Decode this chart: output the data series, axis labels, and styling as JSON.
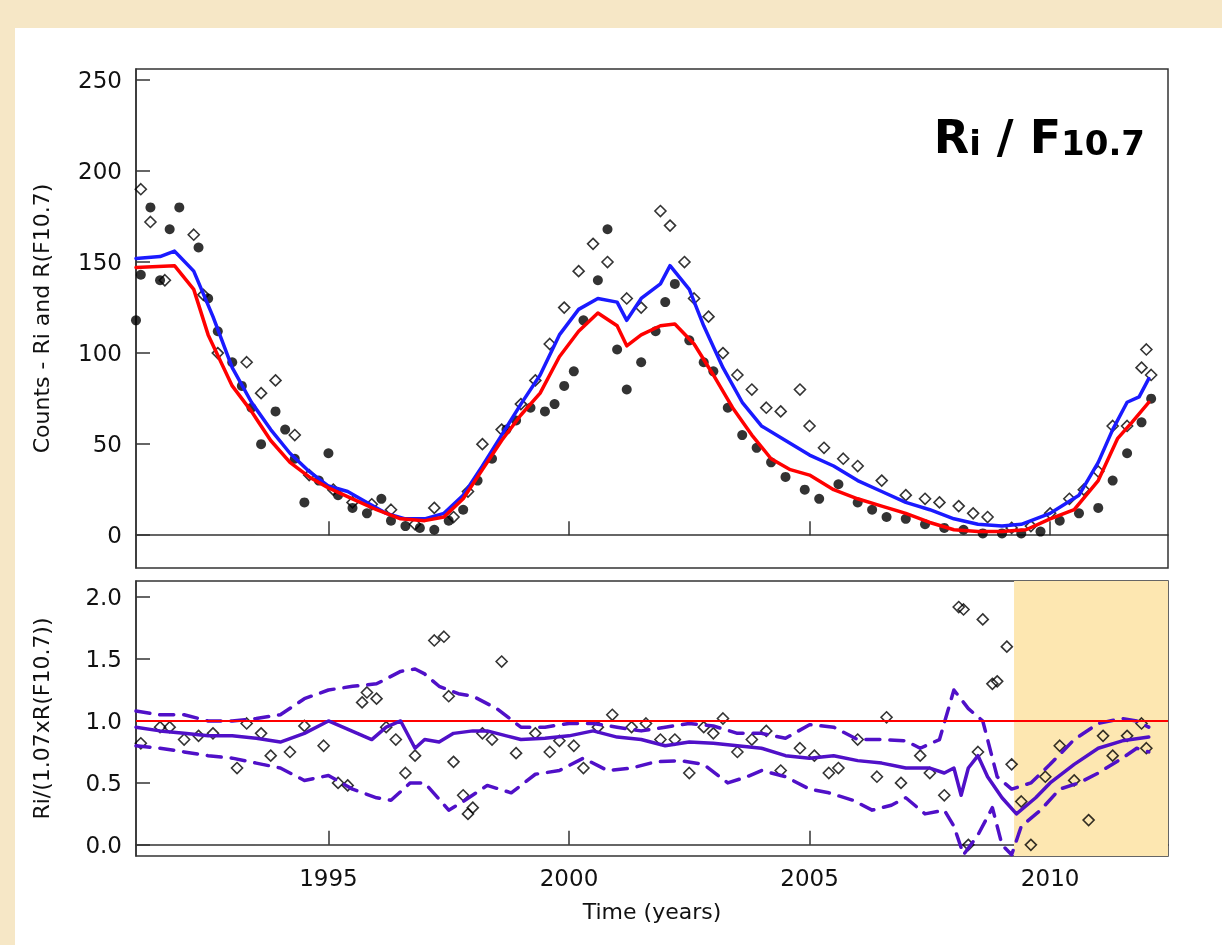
{
  "chart_data": [
    {
      "type": "line",
      "title": "R$_{i}$ / F$_{10.7}$",
      "ylabel": "Counts - Ri and R(F10.7)",
      "xlim": [
        1991,
        2012.45
      ],
      "xticks": [
        1995,
        2000,
        2005,
        2010
      ],
      "ylim": [
        -18,
        256
      ],
      "yticks": [
        0,
        50,
        100,
        150,
        200,
        250
      ],
      "tick_labels": "y",
      "series": [
        {
          "type": "scatter",
          "marker": "circle",
          "color": "#000000",
          "x": [
            1991.0,
            1991.1,
            1991.3,
            1991.5,
            1991.7,
            1991.9,
            1992.3,
            1992.5,
            1992.7,
            1993.0,
            1993.2,
            1993.4,
            1993.6,
            1993.9,
            1994.1,
            1994.3,
            1994.5,
            1994.8,
            1995.0,
            1995.2,
            1995.5,
            1995.8,
            1996.1,
            1996.3,
            1996.6,
            1996.9,
            1997.2,
            1997.5,
            1997.8,
            1998.1,
            1998.4,
            1998.7,
            1998.9,
            1999.2,
            1999.5,
            1999.7,
            1999.9,
            2000.1,
            2000.3,
            2000.6,
            2000.8,
            2001.0,
            2001.2,
            2001.5,
            2001.8,
            2002.0,
            2002.2,
            2002.5,
            2002.8,
            2003.0,
            2003.3,
            2003.6,
            2003.9,
            2004.2,
            2004.5,
            2004.9,
            2005.2,
            2005.6,
            2006.0,
            2006.3,
            2006.6,
            2007.0,
            2007.4,
            2007.8,
            2008.2,
            2008.6,
            2009.0,
            2009.4,
            2009.8,
            2010.2,
            2010.6,
            2011.0,
            2011.3,
            2011.6,
            2011.9,
            2012.1
          ],
          "values": [
            118,
            143,
            180,
            140,
            168,
            180,
            158,
            130,
            112,
            95,
            82,
            70,
            50,
            68,
            58,
            42,
            18,
            30,
            45,
            22,
            15,
            12,
            20,
            8,
            5,
            4,
            3,
            8,
            14,
            30,
            42,
            58,
            63,
            70,
            68,
            72,
            82,
            90,
            118,
            140,
            168,
            102,
            80,
            95,
            112,
            128,
            138,
            107,
            95,
            90,
            70,
            55,
            48,
            40,
            32,
            25,
            20,
            28,
            18,
            14,
            10,
            9,
            6,
            4,
            3,
            1,
            1,
            1,
            2,
            8,
            12,
            15,
            30,
            45,
            62,
            75
          ]
        },
        {
          "type": "scatter",
          "marker": "diamond",
          "color": "#000000",
          "x": [
            1991.1,
            1991.3,
            1991.6,
            1992.2,
            1992.4,
            1992.7,
            1993.3,
            1993.6,
            1993.9,
            1994.3,
            1994.6,
            1995.1,
            1995.5,
            1995.9,
            1996.3,
            1996.8,
            1997.2,
            1997.6,
            1997.9,
            1998.2,
            1998.6,
            1999.0,
            1999.3,
            1999.6,
            1999.9,
            2000.2,
            2000.5,
            2000.8,
            2001.2,
            2001.5,
            2001.9,
            2002.1,
            2002.4,
            2002.6,
            2002.9,
            2003.2,
            2003.5,
            2003.8,
            2004.1,
            2004.4,
            2004.8,
            2005.0,
            2005.3,
            2005.7,
            2006.0,
            2006.5,
            2007.0,
            2007.4,
            2007.7,
            2008.1,
            2008.4,
            2008.7,
            2009.2,
            2009.6,
            2010.0,
            2010.4,
            2010.7,
            2011.0,
            2011.3,
            2011.6,
            2011.9,
            2012.0,
            2012.1
          ],
          "values": [
            190,
            172,
            140,
            165,
            132,
            100,
            95,
            78,
            85,
            55,
            33,
            25,
            18,
            17,
            14,
            6,
            15,
            10,
            24,
            50,
            58,
            72,
            85,
            105,
            125,
            145,
            160,
            150,
            130,
            125,
            178,
            170,
            150,
            130,
            120,
            100,
            88,
            80,
            70,
            68,
            80,
            60,
            48,
            42,
            38,
            30,
            22,
            20,
            18,
            16,
            12,
            10,
            4,
            5,
            12,
            20,
            25,
            35,
            60,
            60,
            92,
            102,
            88
          ]
        },
        {
          "type": "line",
          "marker": "none",
          "color": "#1a1aff",
          "x": [
            1991.0,
            1991.5,
            1991.8,
            1992.2,
            1992.6,
            1993.0,
            1993.4,
            1993.8,
            1994.2,
            1994.6,
            1995.0,
            1995.4,
            1995.8,
            1996.2,
            1996.6,
            1997.0,
            1997.4,
            1997.8,
            1998.2,
            1998.6,
            1999.0,
            1999.4,
            1999.8,
            2000.2,
            2000.6,
            2001.0,
            2001.2,
            2001.5,
            2001.9,
            2002.1,
            2002.5,
            2002.8,
            2003.2,
            2003.6,
            2004.0,
            2004.5,
            2005.0,
            2005.5,
            2006.0,
            2006.5,
            2007.0,
            2007.5,
            2008.0,
            2008.5,
            2009.0,
            2009.4,
            2010.0,
            2010.6,
            2011.0,
            2011.3,
            2011.6,
            2011.85,
            2012.05
          ],
          "values": [
            152,
            153,
            156,
            145,
            120,
            92,
            73,
            58,
            45,
            35,
            27,
            24,
            18,
            12,
            9,
            9,
            12,
            22,
            38,
            55,
            72,
            88,
            110,
            124,
            130,
            128,
            118,
            130,
            138,
            148,
            135,
            115,
            92,
            73,
            60,
            52,
            44,
            38,
            30,
            24,
            18,
            14,
            9,
            6,
            5,
            6,
            12,
            22,
            40,
            58,
            73,
            76,
            86
          ]
        },
        {
          "type": "line",
          "marker": "none",
          "color": "#ff0000",
          "x": [
            1991.0,
            1991.8,
            1992.2,
            1992.5,
            1993.0,
            1993.4,
            1993.8,
            1994.2,
            1994.6,
            1995.0,
            1995.5,
            1996.0,
            1996.5,
            1997.0,
            1997.4,
            1997.8,
            1998.2,
            1998.6,
            1999.0,
            1999.4,
            1999.8,
            2000.2,
            2000.6,
            2001.0,
            2001.2,
            2001.5,
            2001.9,
            2002.2,
            2002.6,
            2003.0,
            2003.4,
            2003.8,
            2004.2,
            2004.6,
            2005.0,
            2005.5,
            2006.0,
            2006.5,
            2007.0,
            2007.5,
            2008.0,
            2008.5,
            2009.0,
            2009.5,
            2010.0,
            2010.5,
            2011.0,
            2011.4,
            2011.7,
            2012.05
          ],
          "values": [
            147,
            148,
            135,
            110,
            82,
            68,
            52,
            40,
            32,
            26,
            20,
            14,
            9,
            8,
            10,
            20,
            36,
            52,
            66,
            78,
            98,
            112,
            122,
            115,
            104,
            110,
            115,
            116,
            105,
            88,
            70,
            55,
            42,
            36,
            33,
            25,
            20,
            16,
            12,
            7,
            3,
            2,
            2,
            3,
            9,
            14,
            30,
            53,
            62,
            73
          ]
        }
      ]
    },
    {
      "type": "line",
      "xlabel": "Time (years)",
      "ylabel": "Ri/(1.07xR(F10.7))",
      "xlim": [
        1991,
        2012.45
      ],
      "xticks": [
        1995,
        2000,
        2005,
        2010
      ],
      "ylim": [
        -0.09,
        2.13
      ],
      "yticks": [
        {
          "value": 0,
          "label": "0.0"
        },
        0.5,
        {
          "value": 1,
          "label": "1.0"
        },
        1.5,
        {
          "value": 2,
          "label": "2.0"
        }
      ],
      "ref_lines": [
        {
          "axis": "y",
          "value": 1,
          "color": "#ff0000"
        }
      ],
      "bands": [
        {
          "axis": "x",
          "from": 2009.25,
          "to": 2012.45,
          "color": "#fde7b1"
        }
      ],
      "series": [
        {
          "type": "scatter",
          "marker": "diamond",
          "color": "#000000",
          "x": [
            1991.1,
            1991.5,
            1991.7,
            1992.0,
            1992.3,
            1992.6,
            1993.1,
            1993.3,
            1993.6,
            1993.8,
            1994.2,
            1994.5,
            1994.9,
            1995.2,
            1995.4,
            1995.7,
            1995.8,
            1996.0,
            1996.2,
            1996.4,
            1996.6,
            1996.8,
            1997.2,
            1997.4,
            1997.5,
            1997.6,
            1997.8,
            1997.9,
            1998.0,
            1998.2,
            1998.4,
            1998.6,
            1998.9,
            1999.3,
            1999.6,
            1999.8,
            2000.1,
            2000.3,
            2000.6,
            2000.9,
            2001.3,
            2001.6,
            2001.9,
            2002.2,
            2002.5,
            2002.8,
            2003.0,
            2003.2,
            2003.5,
            2003.8,
            2004.1,
            2004.4,
            2004.8,
            2005.1,
            2005.4,
            2005.6,
            2006.0,
            2006.4,
            2006.6,
            2006.9,
            2007.3,
            2007.5,
            2007.8,
            2008.1,
            2008.2,
            2008.3,
            2008.5,
            2008.6,
            2008.8,
            2008.9,
            2009.1,
            2009.2,
            2009.4,
            2009.6,
            2009.9,
            2010.2,
            2010.5,
            2010.8,
            2011.1,
            2011.3,
            2011.6,
            2011.9,
            2012.0
          ],
          "values": [
            0.82,
            0.95,
            0.95,
            0.85,
            0.88,
            0.9,
            0.62,
            0.98,
            0.9,
            0.72,
            0.75,
            0.96,
            0.8,
            0.5,
            0.48,
            1.15,
            1.23,
            1.18,
            0.95,
            0.85,
            0.58,
            0.72,
            1.65,
            1.68,
            1.2,
            0.67,
            0.4,
            0.25,
            0.3,
            0.9,
            0.85,
            1.48,
            0.74,
            0.9,
            0.75,
            0.84,
            0.8,
            0.62,
            0.95,
            1.05,
            0.95,
            0.98,
            0.85,
            0.85,
            0.58,
            0.95,
            0.9,
            1.02,
            0.75,
            0.85,
            0.92,
            0.6,
            0.78,
            0.72,
            0.58,
            0.62,
            0.85,
            0.55,
            1.03,
            0.5,
            0.72,
            0.58,
            0.4,
            1.92,
            1.9,
            0.0,
            0.75,
            1.82,
            1.3,
            1.32,
            1.6,
            0.65,
            0.35,
            0.0,
            0.55,
            0.8,
            0.52,
            0.2,
            0.88,
            0.72,
            0.88,
            0.98,
            0.78
          ]
        },
        {
          "type": "line",
          "marker": "none",
          "line_style": "dashed",
          "color": "#5010c8",
          "x": [
            1991.0,
            1991.5,
            1992.0,
            1992.5,
            1993.0,
            1993.5,
            1994.0,
            1994.5,
            1995.0,
            1995.5,
            1996.0,
            1996.5,
            1996.8,
            1997.0,
            1997.3,
            1997.7,
            1998.0,
            1998.5,
            1999.0,
            1999.5,
            2000.0,
            2000.5,
            2001.0,
            2001.5,
            2002.0,
            2002.5,
            2003.0,
            2003.5,
            2004.0,
            2004.5,
            2005.0,
            2005.5,
            2006.0,
            2006.5,
            2007.0,
            2007.3,
            2007.7,
            2008.0,
            2008.3,
            2008.6,
            2008.9,
            2009.2,
            2009.6,
            2010.0,
            2010.5,
            2011.0,
            2011.5,
            2011.8,
            2012.05
          ],
          "values": [
            1.08,
            1.05,
            1.05,
            1.0,
            1.0,
            1.02,
            1.05,
            1.18,
            1.25,
            1.28,
            1.3,
            1.4,
            1.42,
            1.38,
            1.28,
            1.22,
            1.2,
            1.1,
            0.95,
            0.95,
            0.98,
            0.98,
            0.95,
            0.92,
            0.95,
            0.98,
            0.96,
            0.9,
            0.9,
            0.86,
            0.97,
            0.95,
            0.85,
            0.85,
            0.84,
            0.78,
            0.85,
            1.25,
            1.1,
            1.0,
            0.55,
            0.45,
            0.5,
            0.65,
            0.85,
            0.98,
            1.02,
            1.0,
            0.95
          ]
        },
        {
          "type": "line",
          "marker": "none",
          "line_style": "dashed",
          "color": "#5010c8",
          "x": [
            1991.0,
            1991.5,
            1992.0,
            1992.5,
            1993.0,
            1993.5,
            1994.0,
            1994.5,
            1995.0,
            1995.5,
            1996.0,
            1996.3,
            1996.7,
            1997.0,
            1997.5,
            1997.8,
            1998.3,
            1998.8,
            1999.3,
            1999.8,
            2000.3,
            2000.8,
            2001.3,
            2001.8,
            2002.3,
            2002.8,
            2003.3,
            2003.7,
            2004.0,
            2004.5,
            2005.0,
            2005.4,
            2005.9,
            2006.3,
            2006.7,
            2007.0,
            2007.4,
            2007.8,
            2008.0,
            2008.2,
            2008.5,
            2008.8,
            2009.0,
            2009.2,
            2009.4,
            2009.8,
            2010.2,
            2010.6,
            2011.0,
            2011.5,
            2011.8,
            2012.05
          ],
          "values": [
            0.8,
            0.78,
            0.75,
            0.72,
            0.7,
            0.66,
            0.62,
            0.52,
            0.56,
            0.45,
            0.38,
            0.36,
            0.5,
            0.5,
            0.28,
            0.35,
            0.48,
            0.42,
            0.57,
            0.6,
            0.7,
            0.6,
            0.62,
            0.67,
            0.68,
            0.65,
            0.5,
            0.55,
            0.6,
            0.55,
            0.45,
            0.42,
            0.36,
            0.28,
            0.32,
            0.38,
            0.25,
            0.28,
            0.15,
            -0.08,
            0.08,
            0.3,
            0.0,
            -0.08,
            0.15,
            0.28,
            0.45,
            0.5,
            0.58,
            0.7,
            0.78,
            0.75
          ]
        },
        {
          "type": "line",
          "marker": "none",
          "color": "#5010c8",
          "x": [
            1991.0,
            1991.5,
            1992.0,
            1992.5,
            1993.0,
            1993.5,
            1994.0,
            1994.5,
            1995.0,
            1995.3,
            1995.6,
            1995.9,
            1996.2,
            1996.5,
            1996.8,
            1997.0,
            1997.3,
            1997.6,
            1998.0,
            1998.3,
            1998.7,
            1999.0,
            1999.5,
            2000.0,
            2000.5,
            2001.0,
            2001.5,
            2002.0,
            2002.5,
            2003.0,
            2003.5,
            2004.0,
            2004.5,
            2005.0,
            2005.5,
            2006.0,
            2006.5,
            2007.0,
            2007.5,
            2007.8,
            2008.0,
            2008.15,
            2008.3,
            2008.5,
            2008.7,
            2009.0,
            2009.3,
            2009.7,
            2010.0,
            2010.5,
            2011.0,
            2011.5,
            2012.05
          ],
          "values": [
            0.95,
            0.92,
            0.9,
            0.88,
            0.88,
            0.86,
            0.83,
            0.9,
            1.0,
            0.95,
            0.9,
            0.85,
            0.95,
            1.0,
            0.78,
            0.85,
            0.83,
            0.9,
            0.92,
            0.92,
            0.88,
            0.85,
            0.86,
            0.88,
            0.92,
            0.87,
            0.85,
            0.8,
            0.83,
            0.82,
            0.8,
            0.78,
            0.72,
            0.7,
            0.72,
            0.68,
            0.66,
            0.62,
            0.62,
            0.58,
            0.62,
            0.4,
            0.62,
            0.72,
            0.55,
            0.38,
            0.25,
            0.38,
            0.5,
            0.65,
            0.78,
            0.84,
            0.87
          ]
        }
      ]
    }
  ]
}
